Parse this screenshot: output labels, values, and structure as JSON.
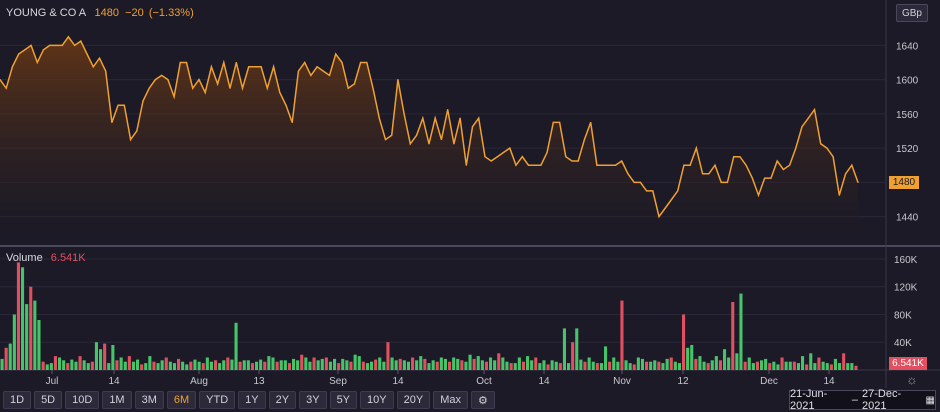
{
  "header": {
    "ticker": "YOUNG & CO A",
    "last": "1480",
    "change": "−20",
    "change_pct": "(−1.33%)",
    "volume_label": "Volume",
    "volume_value": "6.541K",
    "unit": "GBp"
  },
  "colors": {
    "price_line": "#f0a030",
    "up_volume": "#46c46a",
    "down_volume": "#e05060",
    "background": "#1c1a26"
  },
  "toolbar": {
    "periods": [
      "1D",
      "5D",
      "10D",
      "1M",
      "3M",
      "6M",
      "YTD",
      "1Y",
      "2Y",
      "3Y",
      "5Y",
      "10Y",
      "20Y",
      "Max"
    ],
    "active_period": "6M",
    "settings_icon": "gear-icon"
  },
  "date_range": {
    "start": "21-Jun-2021",
    "end": "27-Dec-2021",
    "icon": "calendar-icon"
  },
  "chart_data": [
    {
      "type": "area",
      "series": [
        {
          "name": "YOUNG & CO A",
          "values": [
            1600,
            1590,
            1615,
            1630,
            1635,
            1640,
            1620,
            1635,
            1640,
            1640,
            1640,
            1650,
            1640,
            1645,
            1630,
            1615,
            1625,
            1610,
            1550,
            1570,
            1570,
            1530,
            1540,
            1575,
            1590,
            1600,
            1605,
            1600,
            1580,
            1620,
            1620,
            1590,
            1600,
            1585,
            1615,
            1595,
            1620,
            1590,
            1620,
            1590,
            1615,
            1615,
            1615,
            1590,
            1615,
            1585,
            1570,
            1550,
            1610,
            1620,
            1605,
            1615,
            1610,
            1605,
            1630,
            1620,
            1590,
            1595,
            1620,
            1620,
            1590,
            1555,
            1530,
            1535,
            1600,
            1560,
            1525,
            1535,
            1555,
            1525,
            1555,
            1530,
            1565,
            1525,
            1555,
            1500,
            1545,
            1555,
            1510,
            1505,
            1510,
            1515,
            1520,
            1500,
            1510,
            1500,
            1500,
            1500,
            1515,
            1550,
            1550,
            1510,
            1505,
            1505,
            1530,
            1550,
            1500,
            1500,
            1500,
            1500,
            1505,
            1490,
            1480,
            1480,
            1470,
            1470,
            1440,
            1450,
            1460,
            1470,
            1500,
            1500,
            1520,
            1490,
            1490,
            1500,
            1480,
            1480,
            1510,
            1510,
            1500,
            1485,
            1465,
            1485,
            1485,
            1505,
            1495,
            1500,
            1520,
            1545,
            1555,
            1565,
            1525,
            1520,
            1510,
            1465,
            1490,
            1500,
            1480
          ]
        }
      ],
      "ylim": [
        1415,
        1665
      ],
      "y_ticks": [
        1440,
        1480,
        1520,
        1560,
        1600,
        1640
      ],
      "x_tick_labels": [
        "Jul",
        "14",
        "Aug",
        "13",
        "Sep",
        "14",
        "Oct",
        "14",
        "Nov",
        "12",
        "Dec",
        "14"
      ],
      "last_value_label": "1480"
    },
    {
      "type": "bar",
      "series": [
        {
          "name": "Volume",
          "values": [
            16,
            32,
            38,
            80,
            155,
            148,
            95,
            120,
            100,
            72,
            12,
            8,
            10,
            20,
            18,
            14,
            10,
            15,
            12,
            20,
            14,
            10,
            12,
            40,
            30,
            38,
            10,
            36,
            14,
            18,
            12,
            20,
            12,
            15,
            8,
            10,
            20,
            12,
            10,
            14,
            18,
            12,
            10,
            16,
            12,
            8,
            12,
            15,
            12,
            10,
            18,
            12,
            14,
            10,
            14,
            18,
            15,
            68,
            12,
            14,
            14,
            10,
            12,
            15,
            12,
            20,
            18,
            12,
            14,
            14,
            10,
            16,
            14,
            22,
            18,
            12,
            18,
            14,
            16,
            18,
            12,
            16,
            10,
            16,
            14,
            12,
            22,
            20,
            12,
            10,
            12,
            15,
            18,
            12,
            40,
            18,
            14,
            16,
            14,
            12,
            18,
            14,
            20,
            16,
            10,
            14,
            12,
            18,
            16,
            12,
            18,
            16,
            14,
            12,
            22,
            16,
            20,
            14,
            12,
            18,
            14,
            24,
            18,
            12,
            10,
            10,
            18,
            12,
            20,
            14,
            18,
            10,
            14,
            8,
            14,
            12,
            10,
            60,
            10,
            40,
            60,
            15,
            12,
            18,
            12,
            10,
            10,
            34,
            12,
            18,
            12,
            100,
            14,
            10,
            8,
            18,
            16,
            12,
            12,
            14,
            12,
            10,
            16,
            18,
            12,
            10,
            80,
            32,
            36,
            16,
            20,
            12,
            10,
            14,
            20,
            14,
            30,
            18,
            98,
            24,
            110,
            12,
            18,
            10,
            12,
            14,
            16,
            10,
            12,
            8,
            18,
            12,
            12,
            12,
            10,
            20,
            8,
            24,
            10,
            18,
            12,
            10,
            8,
            16,
            10,
            24,
            10,
            10,
            6
          ]
        }
      ],
      "ylim": [
        0,
        170000
      ],
      "y_ticks": [
        "40K",
        "80K",
        "120K",
        "160K"
      ],
      "last_value_label": "6.541K"
    }
  ]
}
